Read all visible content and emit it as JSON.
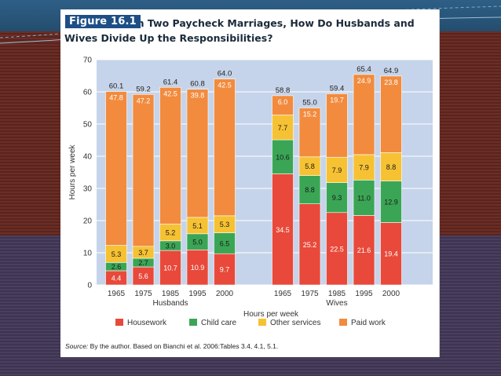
{
  "figure": {
    "badge": "Figure 16.1",
    "title": "In Two Paycheck Marriages, How Do Husbands and Wives Divide Up the Responsibilities?",
    "source_label": "Source:",
    "source_text": "By the author. Based on Bianchi et al. 2006:Tables 3.4, 4.1, 5.1."
  },
  "colors": {
    "housework": "#e8493a",
    "child_care": "#3aa655",
    "other_services": "#f6c233",
    "paid_work": "#f28b3e",
    "plot_bg": "#c5d4ea"
  },
  "chart_data": {
    "type": "bar",
    "stacked": true,
    "ylabel": "Hours per week",
    "xlabel": "Hours per week",
    "ylim": [
      0,
      70
    ],
    "yticks": [
      0,
      10,
      20,
      30,
      40,
      50,
      60,
      70
    ],
    "grid": true,
    "legend_position": "bottom",
    "groups": [
      {
        "name": "Husbands",
        "categories": [
          "1965",
          "1975",
          "1985",
          "1995",
          "2000"
        ],
        "totals": [
          "60.1",
          "59.2",
          "61.4",
          "60.8",
          "64.0"
        ],
        "series": [
          {
            "name": "Housework",
            "values": [
              4.4,
              5.6,
              10.7,
              10.9,
              9.7
            ]
          },
          {
            "name": "Child care",
            "values": [
              2.6,
              2.7,
              3.0,
              5.0,
              6.5
            ]
          },
          {
            "name": "Other services",
            "values": [
              5.3,
              3.7,
              5.2,
              5.1,
              5.3
            ]
          },
          {
            "name": "Paid work",
            "values": [
              47.8,
              47.2,
              42.5,
              39.8,
              42.5
            ]
          }
        ]
      },
      {
        "name": "Wives",
        "categories": [
          "1965",
          "1975",
          "1985",
          "1995",
          "2000"
        ],
        "totals": [
          "58.8",
          "55.0",
          "59.4",
          "65.4",
          "64.9"
        ],
        "series": [
          {
            "name": "Housework",
            "values": [
              34.5,
              25.2,
              22.5,
              21.6,
              19.4
            ]
          },
          {
            "name": "Child care",
            "values": [
              10.6,
              8.8,
              9.3,
              11.0,
              12.9
            ]
          },
          {
            "name": "Other services",
            "values": [
              7.7,
              5.8,
              7.9,
              7.9,
              8.8
            ]
          },
          {
            "name": "Paid work",
            "values": [
              6.0,
              15.2,
              19.7,
              24.9,
              23.8
            ]
          }
        ]
      }
    ],
    "legend": [
      "Housework",
      "Child care",
      "Other services",
      "Paid work"
    ]
  }
}
